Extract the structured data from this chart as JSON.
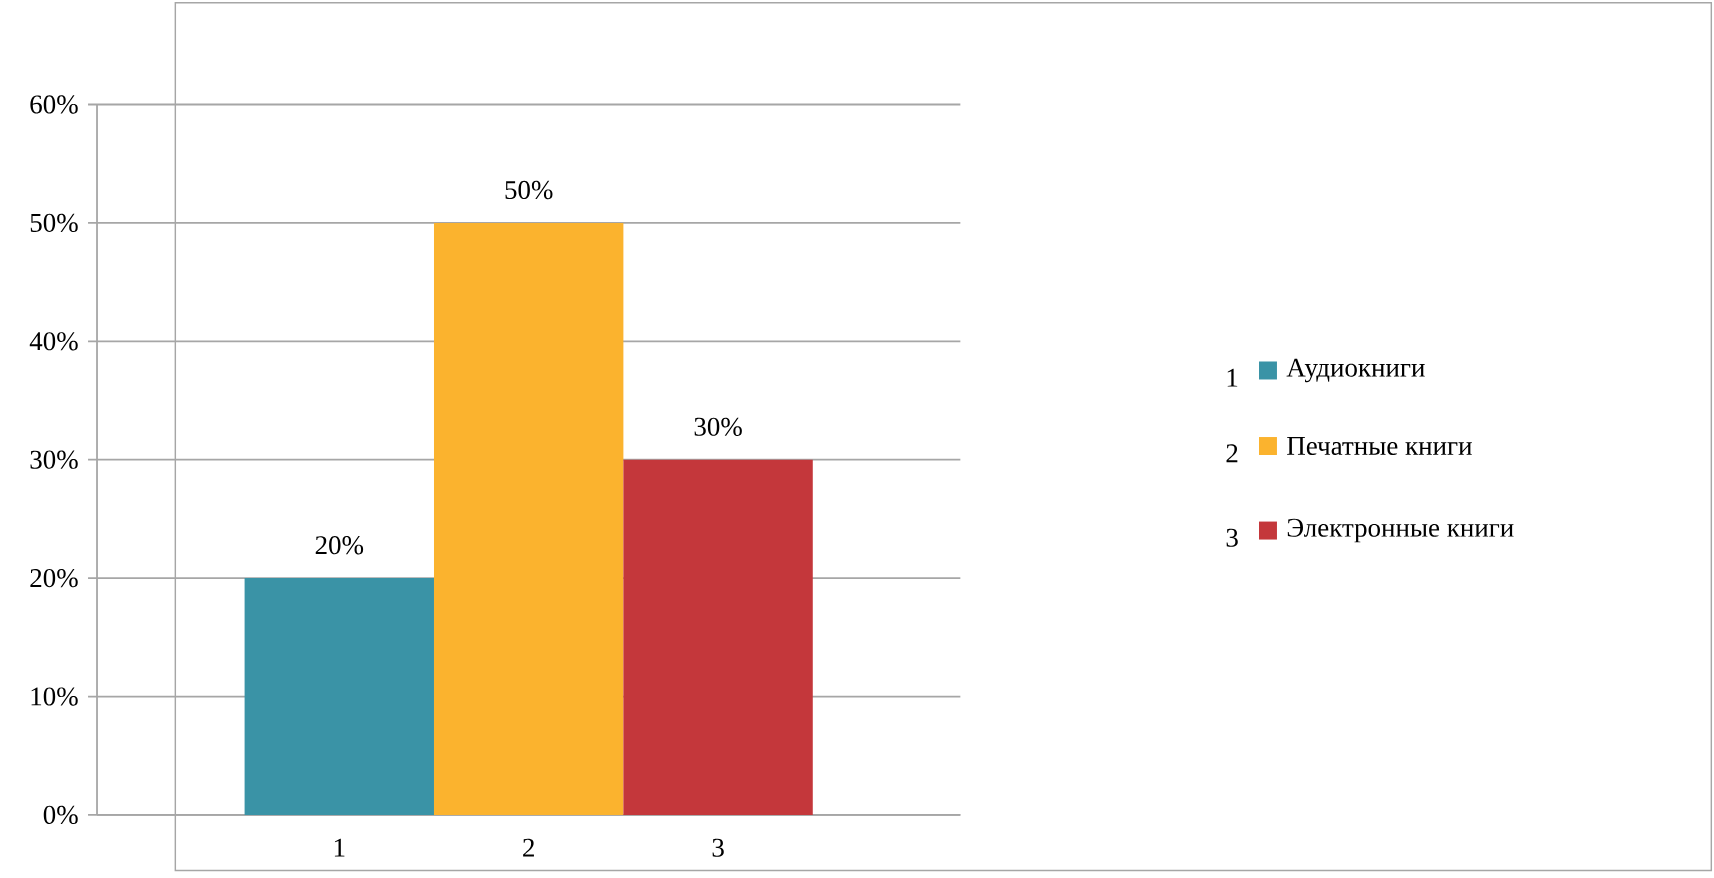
{
  "chart_data": {
    "type": "bar",
    "categories": [
      "1",
      "2",
      "3"
    ],
    "series": [
      {
        "name": "Аудиокниги",
        "color": "#3a93a6",
        "values": [
          20,
          null,
          null
        ],
        "value_labels": [
          "20%",
          null,
          null
        ]
      },
      {
        "name": "Печатные книги",
        "color": "#fbb32e",
        "values": [
          null,
          50,
          null
        ],
        "value_labels": [
          null,
          "50%",
          null
        ]
      },
      {
        "name": "Электронные книги",
        "color": "#c4373b",
        "values": [
          null,
          null,
          30
        ],
        "value_labels": [
          null,
          null,
          "30%"
        ]
      }
    ],
    "ylim": [
      0,
      60
    ],
    "yticks": [
      {
        "value": 0,
        "label": "0%"
      },
      {
        "value": 10,
        "label": "10%"
      },
      {
        "value": 20,
        "label": "20%"
      },
      {
        "value": 30,
        "label": "30%"
      },
      {
        "value": 40,
        "label": "40%"
      },
      {
        "value": 50,
        "label": "50%"
      },
      {
        "value": 60,
        "label": "60%"
      }
    ],
    "grid": "y",
    "legend": "right"
  }
}
